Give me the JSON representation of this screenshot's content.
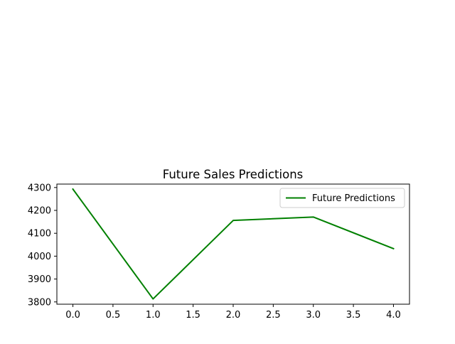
{
  "chart_data": {
    "type": "line",
    "title": "Future Sales Predictions",
    "xlabel": "",
    "ylabel": "",
    "x": [
      0,
      1,
      2,
      3,
      4
    ],
    "series": [
      {
        "name": "Future Predictions",
        "color": "#008000",
        "values": [
          4293,
          3813,
          4156,
          4171,
          4033
        ]
      }
    ],
    "xlim": [
      -0.2,
      4.2
    ],
    "ylim": [
      3790,
      4315
    ],
    "xticks": [
      0.0,
      0.5,
      1.0,
      1.5,
      2.0,
      2.5,
      3.0,
      3.5,
      4.0
    ],
    "xtick_labels": [
      "0.0",
      "0.5",
      "1.0",
      "1.5",
      "2.0",
      "2.5",
      "3.0",
      "3.5",
      "4.0"
    ],
    "yticks": [
      3800,
      3900,
      4000,
      4100,
      4200,
      4300
    ],
    "ytick_labels": [
      "3800",
      "3900",
      "4000",
      "4100",
      "4200",
      "4300"
    ],
    "grid": false,
    "legend_position": "top-right"
  }
}
